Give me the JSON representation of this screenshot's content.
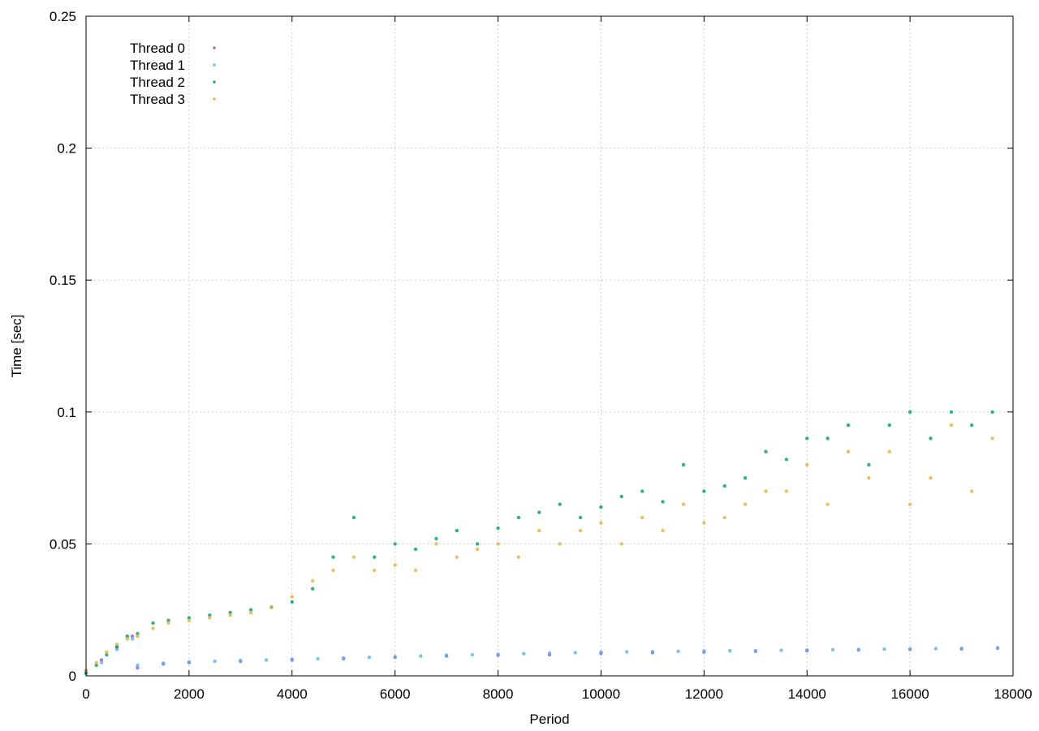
{
  "chart_data": {
    "type": "scatter",
    "title": "",
    "xlabel": "Period",
    "ylabel": "Time [sec]",
    "xlim": [
      0,
      18000
    ],
    "ylim": [
      0,
      0.25
    ],
    "x_ticks": [
      "0",
      "2000",
      "4000",
      "6000",
      "8000",
      "10000",
      "12000",
      "14000",
      "16000",
      "18000"
    ],
    "y_ticks": [
      "0",
      "0.05",
      "0.1",
      "0.15",
      "0.2",
      "0.25"
    ],
    "grid": true,
    "legend_position": "top-left",
    "series": [
      {
        "name": "Thread 0",
        "color": "#9b59d0",
        "marker": "dot",
        "points": [
          [
            0,
            0.002
          ],
          [
            300,
            0.006
          ],
          [
            600,
            0.011
          ],
          [
            900,
            0.015
          ],
          [
            1000,
            0.003
          ],
          [
            1500,
            0.0045
          ],
          [
            2000,
            0.005
          ],
          [
            3000,
            0.0055
          ],
          [
            4000,
            0.006
          ],
          [
            5000,
            0.0065
          ],
          [
            6000,
            0.007
          ],
          [
            7000,
            0.0075
          ],
          [
            8000,
            0.0078
          ],
          [
            9000,
            0.008
          ],
          [
            10000,
            0.0085
          ],
          [
            11000,
            0.0088
          ],
          [
            12000,
            0.009
          ],
          [
            13000,
            0.0093
          ],
          [
            14000,
            0.0095
          ],
          [
            15000,
            0.0098
          ],
          [
            16000,
            0.01
          ],
          [
            17000,
            0.0102
          ],
          [
            17700,
            0.0105
          ]
        ]
      },
      {
        "name": "Thread 1",
        "color": "#56b4e9",
        "marker": "dot",
        "points": [
          [
            0,
            0.001
          ],
          [
            300,
            0.005
          ],
          [
            600,
            0.01
          ],
          [
            900,
            0.014
          ],
          [
            1000,
            0.004
          ],
          [
            1500,
            0.0048
          ],
          [
            2000,
            0.0053
          ],
          [
            2500,
            0.0055
          ],
          [
            3000,
            0.0058
          ],
          [
            3500,
            0.006
          ],
          [
            4000,
            0.0063
          ],
          [
            4500,
            0.0065
          ],
          [
            5000,
            0.0068
          ],
          [
            5500,
            0.007
          ],
          [
            6000,
            0.0073
          ],
          [
            6500,
            0.0075
          ],
          [
            7000,
            0.0078
          ],
          [
            7500,
            0.008
          ],
          [
            8000,
            0.0082
          ],
          [
            8500,
            0.0084
          ],
          [
            9000,
            0.0086
          ],
          [
            9500,
            0.0088
          ],
          [
            10000,
            0.009
          ],
          [
            10500,
            0.0091
          ],
          [
            11000,
            0.0092
          ],
          [
            11500,
            0.0093
          ],
          [
            12000,
            0.0094
          ],
          [
            12500,
            0.0095
          ],
          [
            13000,
            0.0096
          ],
          [
            13500,
            0.0097
          ],
          [
            14000,
            0.0098
          ],
          [
            14500,
            0.0099
          ],
          [
            15000,
            0.01
          ],
          [
            15500,
            0.0101
          ],
          [
            16000,
            0.0102
          ],
          [
            16500,
            0.0103
          ],
          [
            17000,
            0.0104
          ],
          [
            17700,
            0.0106
          ]
        ]
      },
      {
        "name": "Thread 2",
        "color": "#009e73",
        "marker": "dot",
        "points": [
          [
            0,
            0.001
          ],
          [
            200,
            0.004
          ],
          [
            400,
            0.008
          ],
          [
            600,
            0.011
          ],
          [
            800,
            0.015
          ],
          [
            1000,
            0.016
          ],
          [
            1300,
            0.02
          ],
          [
            1600,
            0.021
          ],
          [
            2000,
            0.022
          ],
          [
            2400,
            0.023
          ],
          [
            2800,
            0.024
          ],
          [
            3200,
            0.025
          ],
          [
            3600,
            0.026
          ],
          [
            4000,
            0.028
          ],
          [
            4400,
            0.033
          ],
          [
            4800,
            0.045
          ],
          [
            5200,
            0.06
          ],
          [
            5600,
            0.045
          ],
          [
            6000,
            0.05
          ],
          [
            6400,
            0.048
          ],
          [
            6800,
            0.052
          ],
          [
            7200,
            0.055
          ],
          [
            7600,
            0.05
          ],
          [
            8000,
            0.056
          ],
          [
            8400,
            0.06
          ],
          [
            8800,
            0.062
          ],
          [
            9200,
            0.065
          ],
          [
            9600,
            0.06
          ],
          [
            10000,
            0.064
          ],
          [
            10400,
            0.068
          ],
          [
            10800,
            0.07
          ],
          [
            11200,
            0.066
          ],
          [
            11600,
            0.08
          ],
          [
            12000,
            0.07
          ],
          [
            12400,
            0.072
          ],
          [
            12800,
            0.075
          ],
          [
            13200,
            0.085
          ],
          [
            13600,
            0.082
          ],
          [
            14000,
            0.09
          ],
          [
            14400,
            0.09
          ],
          [
            14800,
            0.095
          ],
          [
            15200,
            0.08
          ],
          [
            15600,
            0.095
          ],
          [
            16000,
            0.1
          ],
          [
            16400,
            0.09
          ],
          [
            16800,
            0.1
          ],
          [
            17200,
            0.095
          ],
          [
            17600,
            0.1
          ]
        ]
      },
      {
        "name": "Thread 3",
        "color": "#e6b035",
        "marker": "dot",
        "points": [
          [
            0,
            0.002
          ],
          [
            200,
            0.005
          ],
          [
            400,
            0.009
          ],
          [
            600,
            0.012
          ],
          [
            800,
            0.014
          ],
          [
            1000,
            0.015
          ],
          [
            1300,
            0.018
          ],
          [
            1600,
            0.02
          ],
          [
            2000,
            0.021
          ],
          [
            2400,
            0.022
          ],
          [
            2800,
            0.023
          ],
          [
            3200,
            0.024
          ],
          [
            3600,
            0.026
          ],
          [
            4000,
            0.03
          ],
          [
            4400,
            0.036
          ],
          [
            4800,
            0.04
          ],
          [
            5200,
            0.045
          ],
          [
            5600,
            0.04
          ],
          [
            6000,
            0.042
          ],
          [
            6400,
            0.04
          ],
          [
            6800,
            0.05
          ],
          [
            7200,
            0.045
          ],
          [
            7600,
            0.048
          ],
          [
            8000,
            0.05
          ],
          [
            8400,
            0.045
          ],
          [
            8800,
            0.055
          ],
          [
            9200,
            0.05
          ],
          [
            9600,
            0.055
          ],
          [
            10000,
            0.058
          ],
          [
            10400,
            0.05
          ],
          [
            10800,
            0.06
          ],
          [
            11200,
            0.055
          ],
          [
            11600,
            0.065
          ],
          [
            12000,
            0.058
          ],
          [
            12400,
            0.06
          ],
          [
            12800,
            0.065
          ],
          [
            13200,
            0.07
          ],
          [
            13600,
            0.07
          ],
          [
            14000,
            0.08
          ],
          [
            14400,
            0.065
          ],
          [
            14800,
            0.085
          ],
          [
            15200,
            0.075
          ],
          [
            15600,
            0.085
          ],
          [
            16000,
            0.065
          ],
          [
            16400,
            0.075
          ],
          [
            16800,
            0.095
          ],
          [
            17200,
            0.07
          ],
          [
            17600,
            0.09
          ]
        ]
      }
    ]
  }
}
